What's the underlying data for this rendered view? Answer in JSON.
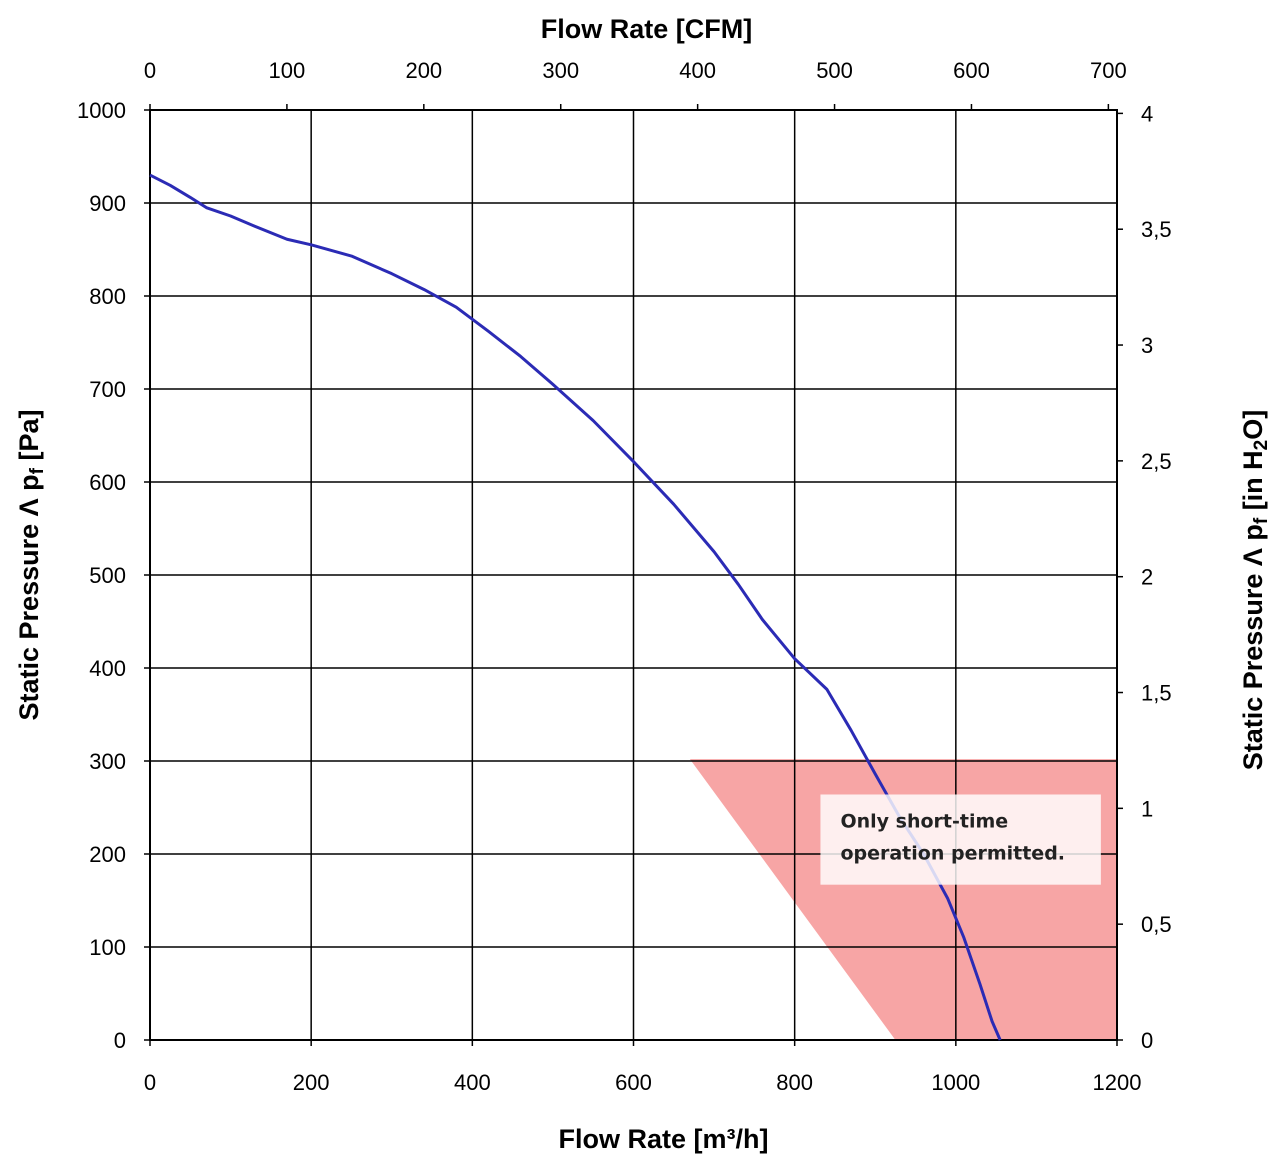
{
  "chart_data": {
    "type": "line",
    "axes": {
      "bottom": {
        "label": "Flow Rate [m³/h]",
        "range": [
          0,
          1200
        ],
        "ticks": [
          0,
          200,
          400,
          600,
          800,
          1000,
          1200
        ]
      },
      "top": {
        "label": "Flow Rate [CFM]",
        "range": [
          0,
          706.3
        ],
        "ticks": [
          0,
          100,
          200,
          300,
          400,
          500,
          600,
          700
        ]
      },
      "left": {
        "label_main": "Static Pressure Λ p",
        "label_sub": "f",
        "label_end": " [Pa]",
        "range": [
          0,
          1000
        ],
        "ticks": [
          0,
          100,
          200,
          300,
          400,
          500,
          600,
          700,
          800,
          900,
          1000
        ]
      },
      "right": {
        "label_main": "Static Pressure Λ p",
        "label_sub": "f",
        "label_mid": " [in H",
        "label_sub2": "2",
        "label_end": "O]",
        "range": [
          0,
          4.0146
        ],
        "ticks": [
          0,
          0.5,
          1,
          1.5,
          2,
          2.5,
          3,
          3.5,
          4
        ],
        "tick_labels": [
          "0",
          "0,5",
          "1",
          "1,5",
          "2",
          "2,5",
          "3",
          "3,5",
          "4"
        ]
      }
    },
    "grid": true,
    "series": [
      {
        "color": "#2b2bb5",
        "x": [
          0,
          25,
          50,
          70,
          100,
          130,
          170,
          200,
          250,
          300,
          340,
          380,
          420,
          460,
          500,
          550,
          600,
          650,
          700,
          730,
          760,
          800,
          840,
          870,
          900,
          930,
          960,
          990,
          1010,
          1030,
          1045,
          1055
        ],
        "y": [
          930,
          919,
          906,
          895,
          886,
          875,
          861,
          855,
          843,
          824,
          807,
          788,
          762,
          735,
          705,
          666,
          622,
          576,
          525,
          490,
          452,
          410,
          377,
          333,
          286,
          240,
          200,
          152,
          110,
          60,
          20,
          0
        ]
      }
    ],
    "shaded_region": {
      "color": "#f7a5a5",
      "polygon": [
        [
          670,
          302
        ],
        [
          1200,
          302
        ],
        [
          1200,
          0
        ],
        [
          925,
          0
        ]
      ]
    },
    "annotation": {
      "lines": [
        "Only short-time",
        "operation permitted."
      ],
      "x_range": [
        832,
        1180
      ],
      "y_range": [
        167,
        264
      ]
    }
  }
}
